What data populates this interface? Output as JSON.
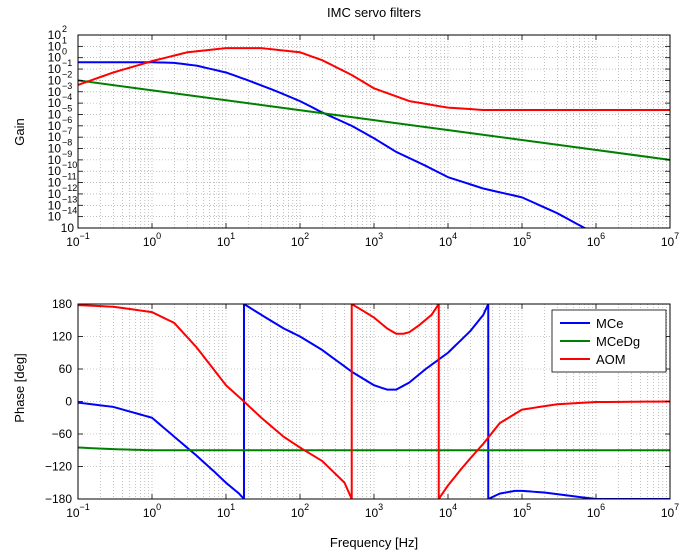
{
  "chart_data": [
    {
      "type": "line",
      "title": "IMC servo filters",
      "xlabel": "",
      "ylabel": "Gain",
      "xscale": "log",
      "yscale": "log",
      "xlim": [
        0.1,
        10000000
      ],
      "ylim": [
        1e-15,
        100
      ],
      "x_ticks": [
        {
          "base": "10",
          "exp": "−1"
        },
        {
          "base": "10",
          "exp": "0"
        },
        {
          "base": "10",
          "exp": "1"
        },
        {
          "base": "10",
          "exp": "2"
        },
        {
          "base": "10",
          "exp": "3"
        },
        {
          "base": "10",
          "exp": "4"
        },
        {
          "base": "10",
          "exp": "5"
        },
        {
          "base": "10",
          "exp": "6"
        },
        {
          "base": "10",
          "exp": "7"
        }
      ],
      "y_tick_labels": [
        "10^-15",
        "10^-14",
        "10^-13",
        "10^-12",
        "10^-11",
        "10^-10",
        "10^-9",
        "10^-8",
        "10^-7",
        "10^-6",
        "10^-5",
        "10^-4",
        "10^-3",
        "10^-2",
        "10^-1",
        "10^0",
        "10^1",
        "10^2"
      ],
      "y_ticks": [
        {
          "base": "10",
          "exp": ""
        },
        {
          "base": "10",
          "exp": "−14"
        },
        {
          "base": "10",
          "exp": "−13"
        },
        {
          "base": "10",
          "exp": "−12"
        },
        {
          "base": "10",
          "exp": "−11"
        },
        {
          "base": "10",
          "exp": "−10"
        },
        {
          "base": "10",
          "exp": "−9"
        },
        {
          "base": "10",
          "exp": "−8"
        },
        {
          "base": "10",
          "exp": "−7"
        },
        {
          "base": "10",
          "exp": "−6"
        },
        {
          "base": "10",
          "exp": "−5"
        },
        {
          "base": "10",
          "exp": "−4"
        },
        {
          "base": "10",
          "exp": "−3"
        },
        {
          "base": "10",
          "exp": "−2"
        },
        {
          "base": "10",
          "exp": "−1"
        },
        {
          "base": "10",
          "exp": "0"
        },
        {
          "base": "10",
          "exp": "1"
        },
        {
          "base": "10",
          "exp": "2"
        }
      ],
      "grid": true,
      "series": [
        {
          "name": "MCe",
          "color": "#0000ff",
          "x": [
            0.1,
            0.3,
            1,
            2,
            4,
            10,
            20,
            50,
            100,
            200,
            500,
            1000,
            2000,
            5000,
            10000,
            30000,
            100000,
            300000,
            700000,
            1000000
          ],
          "y": [
            0.4,
            0.4,
            0.4,
            0.35,
            0.2,
            0.05,
            0.01,
            0.001,
            0.00015,
            1.5e-05,
            1e-06,
            8e-08,
            5e-09,
            3e-10,
            3e-11,
            3e-12,
            5e-13,
            2e-14,
            1e-15,
            5e-16
          ]
        },
        {
          "name": "MCeDg",
          "color": "#008000",
          "x": [
            0.1,
            10000000
          ],
          "y": [
            0.01,
            1e-09
          ]
        },
        {
          "name": "AOM",
          "color": "#ff0000",
          "x": [
            0.1,
            0.3,
            1,
            3,
            10,
            30,
            100,
            200,
            500,
            1000,
            3000,
            10000,
            30000,
            100000,
            1000000,
            10000000
          ],
          "y": [
            0.004,
            0.05,
            0.5,
            3,
            7,
            7,
            3,
            0.6,
            0.03,
            0.002,
            0.00015,
            4e-05,
            2.5e-05,
            2.5e-05,
            2.5e-05,
            2.5e-05
          ]
        }
      ]
    },
    {
      "type": "line",
      "title": "",
      "xlabel": "Frequency [Hz]",
      "ylabel": "Phase [deg]",
      "xscale": "log",
      "xlim": [
        0.1,
        10000000
      ],
      "ylim": [
        -180,
        180
      ],
      "x_ticks": [
        {
          "base": "10",
          "exp": "−1"
        },
        {
          "base": "10",
          "exp": "0"
        },
        {
          "base": "10",
          "exp": "1"
        },
        {
          "base": "10",
          "exp": "2"
        },
        {
          "base": "10",
          "exp": "3"
        },
        {
          "base": "10",
          "exp": "4"
        },
        {
          "base": "10",
          "exp": "5"
        },
        {
          "base": "10",
          "exp": "6"
        },
        {
          "base": "10",
          "exp": "7"
        }
      ],
      "y_ticks": [
        "180",
        "120",
        "60",
        "0",
        "−60",
        "−120",
        "−180"
      ],
      "y_tick_values": [
        180,
        120,
        60,
        0,
        -60,
        -120,
        -180
      ],
      "grid": true,
      "legend": {
        "position": "top-right",
        "entries": [
          "MCe",
          "MCeDg",
          "AOM"
        ]
      },
      "series": [
        {
          "name": "MCe",
          "color": "#0000ff",
          "x": [
            0.1,
            0.3,
            1,
            2,
            4,
            7,
            10,
            15,
            17.5,
            17.5,
            30,
            60,
            100,
            200,
            500,
            1000,
            1500,
            2000,
            3000,
            5000,
            10000,
            20000,
            30000,
            35000,
            35000,
            50000,
            80000,
            100000,
            200000,
            500000,
            1000000,
            10000000
          ],
          "y": [
            -2,
            -10,
            -30,
            -65,
            -100,
            -130,
            -150,
            -170,
            -180,
            180,
            160,
            135,
            120,
            95,
            55,
            30,
            22,
            22,
            35,
            60,
            90,
            130,
            160,
            180,
            -180,
            -170,
            -165,
            -165,
            -168,
            -175,
            -180,
            -180
          ]
        },
        {
          "name": "MCeDg",
          "color": "#008000",
          "x": [
            0.1,
            0.3,
            1,
            10000000
          ],
          "y": [
            -85,
            -88,
            -90,
            -90
          ]
        },
        {
          "name": "AOM",
          "color": "#ff0000",
          "x": [
            0.1,
            0.3,
            1,
            2,
            4,
            10,
            17.5,
            30,
            60,
            100,
            200,
            400,
            500,
            500,
            700,
            1000,
            1500,
            2000,
            2500,
            3000,
            4000,
            6000,
            7500,
            7500,
            10000,
            15000,
            20000,
            30000,
            50000,
            100000,
            300000,
            1000000,
            10000000
          ],
          "y": [
            178,
            175,
            165,
            145,
            100,
            30,
            0,
            -30,
            -65,
            -85,
            -110,
            -150,
            -180,
            180,
            168,
            155,
            135,
            125,
            125,
            128,
            140,
            160,
            180,
            -180,
            -155,
            -125,
            -105,
            -78,
            -40,
            -15,
            -5,
            -1,
            0
          ]
        }
      ]
    }
  ]
}
